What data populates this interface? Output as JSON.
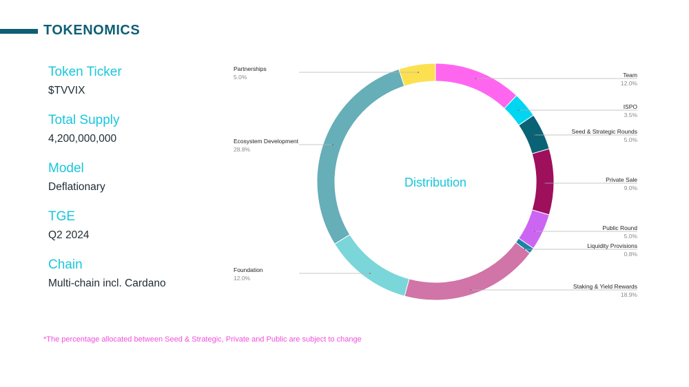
{
  "header": {
    "title": "TOKENOMICS"
  },
  "facts": [
    {
      "label": "Token Ticker",
      "value": "$TVVIX"
    },
    {
      "label": "Total Supply",
      "value": "4,200,000,000"
    },
    {
      "label": "Model",
      "value": "Deflationary"
    },
    {
      "label": "TGE",
      "value": "Q2 2024"
    },
    {
      "label": "Chain",
      "value": "Multi-chain incl. Cardano"
    }
  ],
  "footnote": "*The percentage allocated between Seed & Strategic, Private and Public are subject to change",
  "chart_data": {
    "type": "pie",
    "title": "Distribution",
    "slices": [
      {
        "name": "Team",
        "value": 12.0,
        "label": "12.0%",
        "color": "#ff66f0"
      },
      {
        "name": "ISPO",
        "value": 3.5,
        "label": "3.5%",
        "color": "#00d5f2"
      },
      {
        "name": "Seed & Strategic Rounds",
        "value": 5.0,
        "label": "5.0%",
        "color": "#0a6375"
      },
      {
        "name": "Private Sale",
        "value": 9.0,
        "label": "9.0%",
        "color": "#9e0f5c"
      },
      {
        "name": "Public Round",
        "value": 5.0,
        "label": "5.0%",
        "color": "#cc66f2"
      },
      {
        "name": "Liquidity Provisions",
        "value": 0.8,
        "label": "0.8%",
        "color": "#1784a8"
      },
      {
        "name": "Staking & Yield Rewards",
        "value": 18.9,
        "label": "18.9%",
        "color": "#d174a8"
      },
      {
        "name": "Foundation",
        "value": 12.0,
        "label": "12.0%",
        "color": "#7ad6d9"
      },
      {
        "name": "Ecosystem Development",
        "value": 28.8,
        "label": "28.8%",
        "color": "#66aeb8"
      },
      {
        "name": "Partnerships",
        "value": 5.0,
        "label": "5.0%",
        "color": "#fce050"
      }
    ]
  }
}
